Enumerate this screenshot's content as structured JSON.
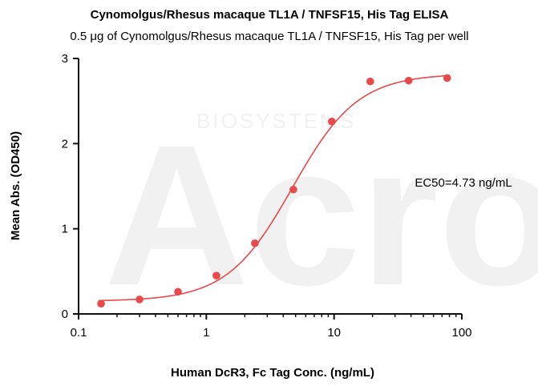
{
  "chart_data": {
    "type": "scatter",
    "title": "Cynomolgus/Rhesus macaque TL1A / TNFSF15, His Tag  ELISA",
    "subtitle": "0.5 μg of Cynomolgus/Rhesus macaque TL1A / TNFSF15, His Tag  per well",
    "xlabel": "Human DcR3, Fc Tag Conc. (ng/mL)",
    "ylabel": "Mean Abs. (OD450)",
    "x_scale": "log",
    "xlim": [
      0.1,
      100
    ],
    "ylim": [
      0,
      3
    ],
    "x_ticks": [
      "0.1",
      "1",
      "10",
      "100"
    ],
    "x_tick_values": [
      0.1,
      1,
      10,
      100
    ],
    "y_ticks": [
      "0",
      "1",
      "2",
      "3"
    ],
    "y_tick_values": [
      0,
      1,
      2,
      3
    ],
    "grid": false,
    "legend": "none",
    "annotation": "EC50=4.73 ng/mL",
    "watermark": "Acro BIOSYSTEMS",
    "series": [
      {
        "x": [
          0.15,
          0.3,
          0.6,
          1.2,
          2.4,
          4.8,
          9.6,
          19.2,
          38.4,
          76.8
        ],
        "values": [
          0.12,
          0.17,
          0.26,
          0.45,
          0.83,
          1.46,
          2.26,
          2.73,
          2.74,
          2.77
        ],
        "color": "#e8494b",
        "fit": {
          "model": "4PL",
          "bottom": 0.15,
          "top": 2.82,
          "ec50": 4.73,
          "hill": 1.7
        }
      }
    ]
  }
}
